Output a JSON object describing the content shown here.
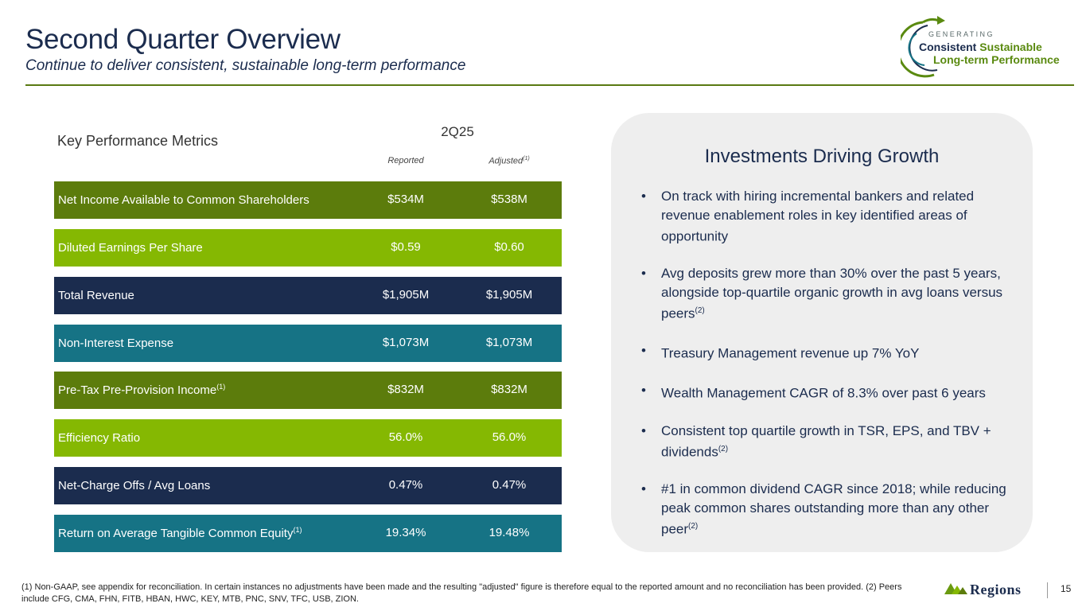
{
  "header": {
    "title": "Second Quarter Overview",
    "subtitle": "Continue to deliver consistent, sustainable long-term performance"
  },
  "logo": {
    "small": "GENERATING",
    "line1_a": "Consistent",
    "line1_b": "Sustainable",
    "line2": "Long-term Performance"
  },
  "metrics": {
    "section_label": "Key Performance Metrics",
    "period": "2Q25",
    "col_reported": "Reported",
    "col_adjusted": "Adjusted",
    "col_adjusted_note": "(1)",
    "rows": [
      {
        "label": "Net Income Available to Common Shareholders",
        "note": "",
        "reported": "$534M",
        "adjusted": "$538M",
        "color": "#5c7c0c"
      },
      {
        "label": "Diluted Earnings Per Share",
        "note": "",
        "reported": "$0.59",
        "adjusted": "$0.60",
        "color": "#85b802"
      },
      {
        "label": "Total Revenue",
        "note": "",
        "reported": "$1,905M",
        "adjusted": "$1,905M",
        "color": "#1b2c4e"
      },
      {
        "label": "Non-Interest Expense",
        "note": "",
        "reported": "$1,073M",
        "adjusted": "$1,073M",
        "color": "#167385"
      },
      {
        "label": "Pre-Tax Pre-Provision Income",
        "note": "(1)",
        "reported": "$832M",
        "adjusted": "$832M",
        "color": "#5c7c0c"
      },
      {
        "label": "Efficiency Ratio",
        "note": "",
        "reported": "56.0%",
        "adjusted": "56.0%",
        "color": "#85b802"
      },
      {
        "label": "Net-Charge Offs / Avg Loans",
        "note": "",
        "reported": "0.47%",
        "adjusted": "0.47%",
        "color": "#1b2c4e"
      },
      {
        "label": "Return on Average Tangible Common Equity",
        "note": "(1)",
        "reported": "19.34%",
        "adjusted": "19.48%",
        "color": "#167385"
      }
    ]
  },
  "panel": {
    "title": "Investments Driving Growth",
    "bullets": [
      {
        "text": "On track with hiring incremental bankers and related revenue enablement roles in key identified areas of opportunity",
        "note": ""
      },
      {
        "text": "Avg deposits grew more than 30% over the past 5 years, alongside top-quartile organic growth in avg loans versus peers",
        "note": "(2)"
      },
      {
        "text": "Treasury Management revenue up 7% YoY",
        "note": ""
      },
      {
        "text": "Wealth Management CAGR of 8.3% over past 6 years",
        "note": ""
      },
      {
        "text": "Consistent top quartile growth in TSR, EPS, and TBV + dividends",
        "note": "(2)"
      },
      {
        "text": "#1 in common dividend CAGR since 2018; while reducing peak common shares outstanding more than any other peer",
        "note": "(2)"
      }
    ]
  },
  "footer": {
    "footnote": "(1) Non-GAAP, see appendix for reconciliation. In certain instances no adjustments have been made and the resulting \"adjusted\" figure is therefore equal to the reported amount and no reconciliation has been provided. (2) Peers include CFG, CMA, FHN, FITB, HBAN, HWC, KEY, MTB, PNC, SNV, TFC, USB, ZION.",
    "brand": "Regions",
    "page_number": "15"
  }
}
